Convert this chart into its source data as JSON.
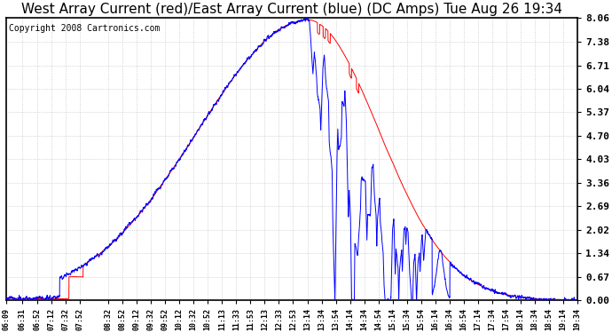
{
  "title": "West Array Current (red)/East Array Current (blue) (DC Amps) Tue Aug 26 19:34",
  "copyright": "Copyright 2008 Cartronics.com",
  "yticks": [
    0.0,
    0.67,
    1.34,
    2.02,
    2.69,
    3.36,
    4.03,
    4.7,
    5.37,
    6.04,
    6.71,
    7.38,
    8.06
  ],
  "ymax": 8.06,
  "ymin": 0.0,
  "xticks": [
    "06:09",
    "06:31",
    "06:52",
    "07:12",
    "07:32",
    "07:52",
    "08:32",
    "08:52",
    "09:12",
    "09:32",
    "09:52",
    "10:12",
    "10:32",
    "10:52",
    "11:13",
    "11:33",
    "11:53",
    "12:13",
    "12:33",
    "12:53",
    "13:14",
    "13:34",
    "13:54",
    "14:14",
    "14:34",
    "14:54",
    "15:14",
    "15:34",
    "15:54",
    "16:14",
    "16:34",
    "16:54",
    "17:14",
    "17:34",
    "17:54",
    "18:14",
    "18:34",
    "18:54",
    "19:14",
    "19:34"
  ],
  "background_color": "#ffffff",
  "plot_bg_color": "#ffffff",
  "grid_color": "#bbbbbb",
  "red_color": "#ff0000",
  "blue_color": "#0000ff",
  "title_fontsize": 11,
  "copyright_fontsize": 7
}
